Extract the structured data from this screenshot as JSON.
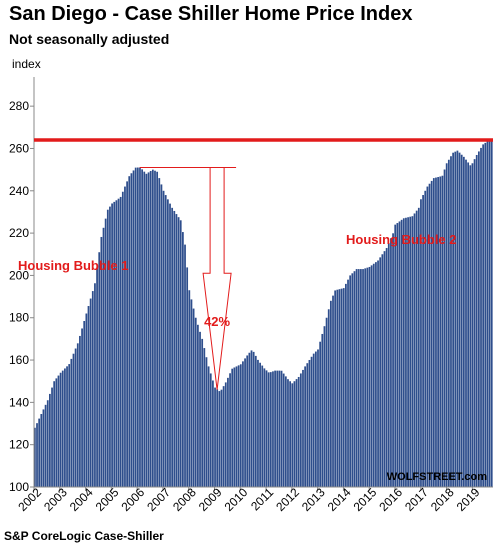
{
  "chart_data": {
    "type": "bar",
    "title": "San Diego - Case Shiller Home Price Index",
    "subtitle": "Not seasonally adjusted",
    "ylabel": "index",
    "ylim": [
      100,
      290
    ],
    "yticks": [
      100,
      120,
      140,
      160,
      180,
      200,
      220,
      240,
      260,
      280
    ],
    "xlim": [
      2002,
      2019.8
    ],
    "xticks": [
      "2002",
      "2003",
      "2004",
      "2005",
      "2006",
      "2007",
      "2008",
      "2009",
      "2010",
      "2011",
      "2012",
      "2013",
      "2014",
      "2015",
      "2016",
      "2017",
      "2018",
      "2019"
    ],
    "grid": false,
    "bar_color": "#2e4e8c",
    "reference_line": {
      "value": 264,
      "color": "#e21b1b"
    },
    "keypoints": [
      [
        2002.0,
        128
      ],
      [
        2002.5,
        141
      ],
      [
        2002.75,
        150
      ],
      [
        2003.0,
        154
      ],
      [
        2003.33,
        158
      ],
      [
        2003.67,
        168
      ],
      [
        2004.0,
        182
      ],
      [
        2004.33,
        196
      ],
      [
        2004.58,
        218
      ],
      [
        2004.83,
        231
      ],
      [
        2005.0,
        234
      ],
      [
        2005.33,
        237
      ],
      [
        2005.67,
        247
      ],
      [
        2005.92,
        251
      ],
      [
        2006.1,
        251
      ],
      [
        2006.33,
        248
      ],
      [
        2006.58,
        250
      ],
      [
        2006.75,
        249
      ],
      [
        2007.0,
        240
      ],
      [
        2007.33,
        232
      ],
      [
        2007.67,
        226
      ],
      [
        2007.83,
        215
      ],
      [
        2008.0,
        193
      ],
      [
        2008.25,
        180
      ],
      [
        2008.5,
        170
      ],
      [
        2008.75,
        157
      ],
      [
        2009.0,
        147
      ],
      [
        2009.2,
        145
      ],
      [
        2009.4,
        149
      ],
      [
        2009.67,
        156
      ],
      [
        2010.0,
        158
      ],
      [
        2010.3,
        163
      ],
      [
        2010.45,
        165
      ],
      [
        2010.67,
        160
      ],
      [
        2010.92,
        156
      ],
      [
        2011.1,
        154
      ],
      [
        2011.33,
        155
      ],
      [
        2011.58,
        155
      ],
      [
        2011.83,
        151
      ],
      [
        2012.0,
        149
      ],
      [
        2012.25,
        152
      ],
      [
        2012.5,
        157
      ],
      [
        2012.83,
        163
      ],
      [
        2013.0,
        165
      ],
      [
        2013.25,
        176
      ],
      [
        2013.5,
        188
      ],
      [
        2013.67,
        193
      ],
      [
        2014.0,
        194
      ],
      [
        2014.25,
        200
      ],
      [
        2014.5,
        203
      ],
      [
        2014.75,
        203
      ],
      [
        2015.0,
        204
      ],
      [
        2015.33,
        207
      ],
      [
        2015.67,
        213
      ],
      [
        2015.92,
        220
      ],
      [
        2016.0,
        224
      ],
      [
        2016.33,
        227
      ],
      [
        2016.67,
        228
      ],
      [
        2016.92,
        232
      ],
      [
        2017.0,
        236
      ],
      [
        2017.25,
        242
      ],
      [
        2017.5,
        246
      ],
      [
        2017.83,
        247
      ],
      [
        2018.0,
        253
      ],
      [
        2018.25,
        258
      ],
      [
        2018.42,
        259
      ],
      [
        2018.67,
        256
      ],
      [
        2018.92,
        252
      ],
      [
        2019.0,
        253
      ],
      [
        2019.17,
        257
      ],
      [
        2019.42,
        262
      ],
      [
        2019.67,
        264
      ]
    ],
    "annotations": {
      "peak_label": "Housing Bubble 1",
      "recent_label": "Housing Bubble 2",
      "drop_label": "42%",
      "drop_from": 251,
      "drop_to": 146,
      "drop_x": 2009.1
    },
    "source": "S&P CoreLogic Case-Shiller",
    "watermark": "WOLFSTREET.com"
  }
}
